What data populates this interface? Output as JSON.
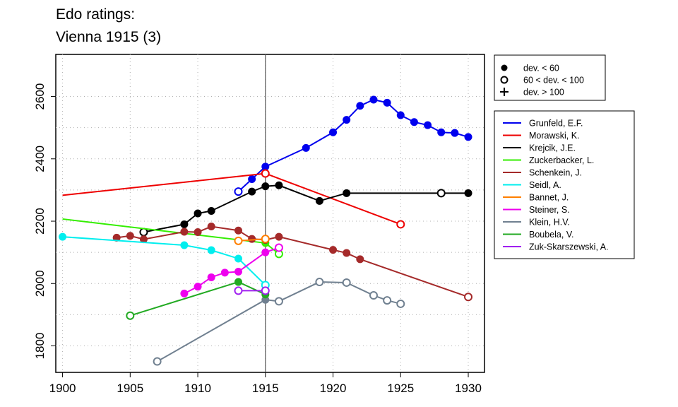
{
  "chart_data": {
    "type": "line",
    "title_lines": [
      "Edo ratings:",
      "Vienna 1915 (3)"
    ],
    "xlabel": "",
    "ylabel": "",
    "xlim": [
      1899.5,
      1931.2
    ],
    "ylim": [
      1715,
      2735
    ],
    "x_ticks": [
      1900,
      1905,
      1910,
      1915,
      1920,
      1925,
      1930
    ],
    "y_ticks": [
      1800,
      2000,
      2200,
      2400,
      2600
    ],
    "grid": "dotted",
    "reference_line_x": 1915,
    "marker_legend": [
      {
        "symbol": "filled-circle",
        "label": "dev. < 60"
      },
      {
        "symbol": "open-circle",
        "label": "60 < dev. < 100"
      },
      {
        "symbol": "plus",
        "label": "dev. > 100"
      }
    ],
    "series": [
      {
        "name": "Grunfeld, E.F.",
        "color": "#0000ee",
        "points": [
          [
            1913,
            2295,
            "open"
          ],
          [
            1914,
            2335,
            "filled"
          ],
          [
            1915,
            2375,
            "filled"
          ],
          [
            1918,
            2435,
            "filled"
          ],
          [
            1920,
            2485,
            "filled"
          ],
          [
            1921,
            2525,
            "filled"
          ],
          [
            1922,
            2570,
            "filled"
          ],
          [
            1923,
            2590,
            "filled"
          ],
          [
            1924,
            2580,
            "filled"
          ],
          [
            1925,
            2540,
            "filled"
          ],
          [
            1926,
            2518,
            "filled"
          ],
          [
            1927,
            2508,
            "filled"
          ],
          [
            1928,
            2485,
            "filled"
          ],
          [
            1929,
            2483,
            "filled"
          ],
          [
            1930,
            2470,
            "filled"
          ]
        ]
      },
      {
        "name": "Morawski, K.",
        "color": "#ee0000",
        "points": [
          [
            1900,
            2283,
            "none"
          ],
          [
            1915,
            2353,
            "open"
          ],
          [
            1925,
            2190,
            "open"
          ]
        ]
      },
      {
        "name": "Krejcik, J.E.",
        "color": "#000000",
        "points": [
          [
            1906,
            2165,
            "open"
          ],
          [
            1909,
            2190,
            "filled"
          ],
          [
            1910,
            2225,
            "filled"
          ],
          [
            1911,
            2233,
            "filled"
          ],
          [
            1914,
            2295,
            "filled"
          ],
          [
            1915,
            2312,
            "filled"
          ],
          [
            1916,
            2315,
            "filled"
          ],
          [
            1919,
            2265,
            "filled"
          ],
          [
            1921,
            2290,
            "filled"
          ],
          [
            1928,
            2290,
            "open"
          ],
          [
            1930,
            2290,
            "filled"
          ]
        ]
      },
      {
        "name": "Zuckerbacker, L.",
        "color": "#33ee00",
        "points": [
          [
            1900,
            2207,
            "none"
          ],
          [
            1915,
            2130,
            "filled"
          ],
          [
            1916,
            2095,
            "open"
          ]
        ]
      },
      {
        "name": "Schenkein, J.",
        "color": "#a52a2a",
        "points": [
          [
            1904,
            2147,
            "filled"
          ],
          [
            1905,
            2153,
            "filled"
          ],
          [
            1906,
            2142,
            "filled"
          ],
          [
            1909,
            2166,
            "filled"
          ],
          [
            1910,
            2165,
            "filled"
          ],
          [
            1911,
            2183,
            "filled"
          ],
          [
            1913,
            2170,
            "filled"
          ],
          [
            1914,
            2143,
            "filled"
          ],
          [
            1915,
            2140,
            "filled"
          ],
          [
            1916,
            2150,
            "filled"
          ],
          [
            1920,
            2108,
            "filled"
          ],
          [
            1921,
            2098,
            "filled"
          ],
          [
            1922,
            2078,
            "filled"
          ],
          [
            1930,
            1957,
            "open"
          ]
        ]
      },
      {
        "name": "Seidl, A.",
        "color": "#00eeee",
        "points": [
          [
            1900,
            2150,
            "filled"
          ],
          [
            1909,
            2123,
            "filled"
          ],
          [
            1911,
            2107,
            "filled"
          ],
          [
            1913,
            2080,
            "filled"
          ],
          [
            1915,
            1995,
            "open"
          ]
        ]
      },
      {
        "name": "Bannet, J.",
        "color": "#ff7f00",
        "points": [
          [
            1913,
            2137,
            "open"
          ],
          [
            1915,
            2143,
            "open"
          ]
        ]
      },
      {
        "name": "Steiner, S.",
        "color": "#ee00ee",
        "points": [
          [
            1909,
            1968,
            "filled"
          ],
          [
            1910,
            1990,
            "filled"
          ],
          [
            1911,
            2020,
            "filled"
          ],
          [
            1912,
            2035,
            "filled"
          ],
          [
            1913,
            2038,
            "filled"
          ],
          [
            1915,
            2100,
            "filled"
          ],
          [
            1916,
            2115,
            "open"
          ]
        ]
      },
      {
        "name": "Klein, H.V.",
        "color": "#708090",
        "points": [
          [
            1907,
            1750,
            "open"
          ],
          [
            1915,
            1948,
            "filled"
          ],
          [
            1916,
            1943,
            "open"
          ],
          [
            1919,
            2005,
            "open"
          ],
          [
            1921,
            2003,
            "open"
          ],
          [
            1923,
            1962,
            "open"
          ],
          [
            1924,
            1946,
            "open"
          ],
          [
            1925,
            1935,
            "open"
          ]
        ]
      },
      {
        "name": "Boubela, V.",
        "color": "#22aa22",
        "points": [
          [
            1905,
            1897,
            "open"
          ],
          [
            1913,
            2005,
            "filled"
          ],
          [
            1915,
            1965,
            "filled"
          ]
        ]
      },
      {
        "name": "Zuk-Skarszewski, A.",
        "color": "#a020f0",
        "points": [
          [
            1913,
            1977,
            "open"
          ],
          [
            1915,
            1977,
            "open"
          ]
        ]
      }
    ]
  }
}
